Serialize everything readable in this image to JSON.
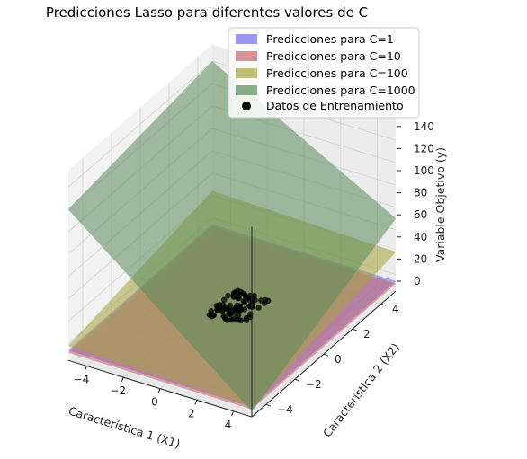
{
  "chart_data": {
    "type": "surface3d",
    "title": "Predicciones Lasso para diferentes valores de C",
    "xlabel": "Característica 1 (X1)",
    "ylabel": "Característica 2 (X2)",
    "zlabel": "Variable Objetivo (y)",
    "xlim": [
      -5,
      5
    ],
    "ylim": [
      -5,
      5
    ],
    "zlim": [
      -15,
      155
    ],
    "x_ticks": [
      -4,
      -2,
      0,
      2,
      4
    ],
    "y_ticks": [
      -4,
      -2,
      0,
      2,
      4
    ],
    "z_ticks": [
      0,
      20,
      40,
      60,
      80,
      100,
      120,
      140
    ],
    "grid": true,
    "legend_position": "top-right",
    "series": [
      {
        "name": "Predicciones para C=1",
        "color": "#6b6be8",
        "corners_z": {
          "x-5_y-5": -6,
          "x5_y-5": -6,
          "x-5_y5": -6,
          "x5_y5": -6
        }
      },
      {
        "name": "Predicciones para C=10",
        "color": "#c8646e",
        "corners_z": {
          "x-5_y-5": -8,
          "x5_y-5": -8,
          "x-5_y5": -8,
          "x5_y5": -8
        }
      },
      {
        "name": "Predicciones para C=100",
        "color": "#a5a53c",
        "corners_z": {
          "x-5_y-5": -2,
          "x5_y-5": -6,
          "x-5_y5": 24,
          "x5_y5": 20
        }
      },
      {
        "name": "Predicciones para C=1000",
        "color": "#5a8c5a",
        "corners_z": {
          "x-5_y-5": 120,
          "x5_y-5": -10,
          "x-5_y5": 140,
          "x5_y5": 50
        }
      }
    ],
    "training_points": {
      "name": "Datos de Entrenamiento",
      "color": "#000000",
      "x_range": [
        -0.5,
        0.5
      ],
      "y_range": [
        -0.5,
        0.5
      ],
      "z_approx": 0
    }
  }
}
